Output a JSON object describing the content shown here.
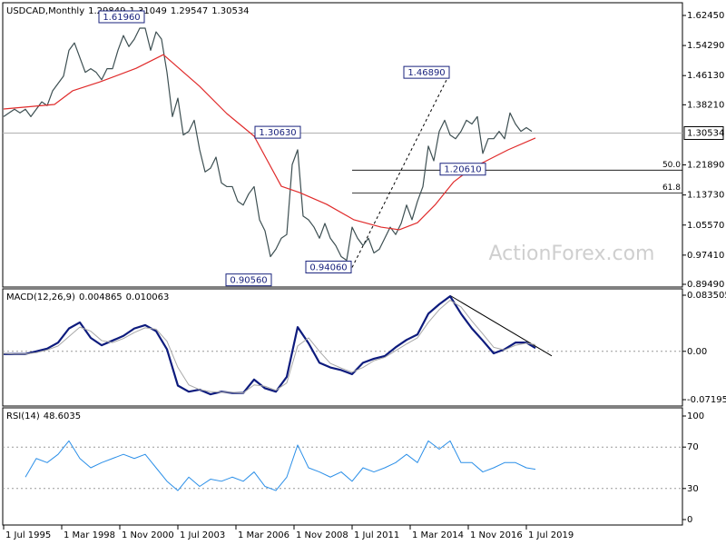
{
  "chart_data": [
    {
      "type": "line",
      "title": "USDCAD,Monthly",
      "readings": [
        1.29849,
        1.31049,
        1.29547,
        1.30534
      ],
      "last_price_line": true,
      "watermark": "ActionForex.com",
      "ylim": [
        0.8949,
        1.6245
      ],
      "yticks": [
        {
          "value": 1.6245,
          "label": "1.62450"
        },
        {
          "value": 1.5429,
          "label": "1.54290"
        },
        {
          "value": 1.4613,
          "label": "1.46130"
        },
        {
          "value": 1.3821,
          "label": "1.38210"
        },
        {
          "value": 1.2189,
          "label": "1.21890"
        },
        {
          "value": 1.1373,
          "label": "1.13730"
        },
        {
          "value": 1.0557,
          "label": "1.05570"
        },
        {
          "value": 0.9741,
          "label": "0.97410"
        },
        {
          "value": 0.8949,
          "label": "0.89490"
        }
      ],
      "series": [
        {
          "color": "#3d4f52",
          "x": [
            "1995-07",
            "1995-10",
            "1996-01",
            "1996-04",
            "1996-07",
            "1996-10",
            "1997-01",
            "1997-04",
            "1997-07",
            "1997-10",
            "1998-01",
            "1998-04",
            "1998-07",
            "1998-10",
            "1999-01",
            "1999-04",
            "1999-07",
            "1999-10",
            "2000-01",
            "2000-04",
            "2000-07",
            "2000-10",
            "2001-01",
            "2001-04",
            "2001-07",
            "2001-10",
            "2002-01",
            "2002-04",
            "2002-07",
            "2002-10",
            "2003-01",
            "2003-04",
            "2003-07",
            "2003-10",
            "2004-01",
            "2004-04",
            "2004-07",
            "2004-10",
            "2005-01",
            "2005-04",
            "2005-07",
            "2005-10",
            "2006-01",
            "2006-04",
            "2006-07",
            "2006-10",
            "2007-01",
            "2007-04",
            "2007-07",
            "2007-10",
            "2008-01",
            "2008-04",
            "2008-07",
            "2008-10",
            "2009-01",
            "2009-04",
            "2009-07",
            "2009-10",
            "2010-01",
            "2010-04",
            "2010-07",
            "2010-10",
            "2011-01",
            "2011-04",
            "2011-07",
            "2011-10",
            "2012-01",
            "2012-04",
            "2012-07",
            "2012-10",
            "2013-01",
            "2013-04",
            "2013-07",
            "2013-10",
            "2014-01",
            "2014-04",
            "2014-07",
            "2014-10",
            "2015-01",
            "2015-04",
            "2015-07",
            "2015-10",
            "2016-01",
            "2016-04",
            "2016-07",
            "2016-10",
            "2017-01",
            "2017-04",
            "2017-07",
            "2017-10",
            "2018-01",
            "2018-04",
            "2018-07",
            "2018-10",
            "2019-01",
            "2019-04",
            "2019-07",
            "2019-10"
          ],
          "values": [
            1.35,
            1.36,
            1.37,
            1.36,
            1.37,
            1.35,
            1.37,
            1.39,
            1.38,
            1.42,
            1.44,
            1.46,
            1.53,
            1.55,
            1.51,
            1.47,
            1.48,
            1.47,
            1.45,
            1.48,
            1.48,
            1.53,
            1.57,
            1.54,
            1.56,
            1.59,
            1.59,
            1.53,
            1.58,
            1.56,
            1.47,
            1.35,
            1.4,
            1.3,
            1.31,
            1.34,
            1.26,
            1.2,
            1.21,
            1.24,
            1.17,
            1.16,
            1.16,
            1.12,
            1.11,
            1.14,
            1.16,
            1.07,
            1.04,
            0.97,
            0.99,
            1.02,
            1.03,
            1.22,
            1.26,
            1.08,
            1.07,
            1.05,
            1.02,
            1.06,
            1.02,
            1.0,
            0.97,
            0.96,
            1.05,
            1.02,
            1.0,
            1.02,
            0.98,
            0.99,
            1.02,
            1.05,
            1.03,
            1.06,
            1.11,
            1.07,
            1.12,
            1.16,
            1.27,
            1.23,
            1.31,
            1.34,
            1.3,
            1.29,
            1.31,
            1.34,
            1.33,
            1.35,
            1.25,
            1.29,
            1.29,
            1.31,
            1.29,
            1.36,
            1.33,
            1.31,
            1.32,
            1.31
          ]
        },
        {
          "color": "#e02b2b",
          "x": [
            "1995-07",
            "1997-11",
            "1998-09",
            "1999-12",
            "2001-08",
            "2002-11",
            "2004-07",
            "2005-10",
            "2007-01",
            "2008-04",
            "2009-02",
            "2010-05",
            "2011-08",
            "2012-11",
            "2013-09",
            "2014-07",
            "2015-05",
            "2016-03",
            "2017-01",
            "2017-11",
            "2018-09",
            "2019-12"
          ],
          "values": [
            1.3706,
            1.383,
            1.42,
            1.444,
            1.481,
            1.518,
            1.432,
            1.358,
            1.297,
            1.161,
            1.144,
            1.112,
            1.07,
            1.05,
            1.043,
            1.062,
            1.112,
            1.173,
            1.21,
            1.235,
            1.26,
            1.292
          ]
        }
      ],
      "annotations": [
        {
          "x": "2002-01",
          "value": 1.6196,
          "label": "1.61960"
        },
        {
          "x": "2009-03",
          "value": 1.3063,
          "label": "1.30630"
        },
        {
          "x": "2016-01",
          "value": 1.4689,
          "label": "1.46890"
        },
        {
          "x": "2017-09",
          "value": 1.2061,
          "label": "1.20610"
        },
        {
          "x": "2007-11",
          "value": 0.9056,
          "label": "0.90560"
        },
        {
          "x": "2011-07",
          "value": 0.9406,
          "label": "0.94060"
        }
      ],
      "trendlines": [
        {
          "x": [
            "2011-07",
            "2016-01"
          ],
          "values": [
            0.9406,
            1.4689
          ]
        }
      ],
      "fib": [
        {
          "x": "2011-07",
          "value": 1.20475,
          "label": "50.0"
        },
        {
          "x": "2011-07",
          "value": 1.1424,
          "label": "61.8"
        }
      ]
    },
    {
      "type": "line",
      "title": "MACD(12,26,9)",
      "readings": [
        0.004865,
        0.010063
      ],
      "ylim": [
        -0.07195,
        0.083505
      ],
      "yticks": [
        0.083505,
        {
          "value": 0,
          "label": "0.00"
        },
        -0.07195
      ],
      "levels": [
        0
      ],
      "series": [
        {
          "color": "#0d1b7d",
          "x": [
            "1995-07",
            "1996-01",
            "1996-07",
            "1997-01",
            "1997-07",
            "1998-01",
            "1998-07",
            "1999-01",
            "1999-07",
            "2000-01",
            "2000-07",
            "2001-01",
            "2001-07",
            "2002-01",
            "2002-07",
            "2003-01",
            "2003-07",
            "2004-01",
            "2004-07",
            "2005-01",
            "2005-07",
            "2006-01",
            "2006-07",
            "2007-01",
            "2007-07",
            "2008-01",
            "2008-07",
            "2009-01",
            "2009-07",
            "2010-01",
            "2010-07",
            "2011-01",
            "2011-07",
            "2012-01",
            "2012-07",
            "2013-01",
            "2013-07",
            "2014-01",
            "2014-07",
            "2015-01",
            "2015-07",
            "2016-01",
            "2016-07",
            "2017-01",
            "2017-07",
            "2018-01",
            "2018-07",
            "2019-01",
            "2019-07",
            "2019-12"
          ],
          "values": [
            -0.004,
            -0.004,
            -0.004,
            0,
            0.004,
            0.013,
            0.034,
            0.043,
            0.02,
            0.009,
            0.016,
            0.023,
            0.034,
            0.039,
            0.03,
            0.003,
            -0.051,
            -0.06,
            -0.057,
            -0.064,
            -0.06,
            -0.062,
            -0.062,
            -0.042,
            -0.055,
            -0.06,
            -0.038,
            0.036,
            0.012,
            -0.017,
            -0.024,
            -0.028,
            -0.034,
            -0.017,
            -0.011,
            -0.007,
            0.006,
            0.017,
            0.025,
            0.056,
            0.07,
            0.082,
            0.056,
            0.034,
            0.016,
            -0.003,
            0.003,
            0.013,
            0.013,
            0.004865
          ]
        },
        {
          "color": "#a8a8a8",
          "x": [
            "1995-07",
            "1996-01",
            "1996-07",
            "1997-01",
            "1997-07",
            "1998-01",
            "1998-07",
            "1999-01",
            "1999-07",
            "2000-01",
            "2000-07",
            "2001-01",
            "2001-07",
            "2002-01",
            "2002-07",
            "2003-01",
            "2003-07",
            "2004-01",
            "2004-07",
            "2005-01",
            "2005-07",
            "2006-01",
            "2006-07",
            "2007-01",
            "2007-07",
            "2008-01",
            "2008-07",
            "2009-01",
            "2009-07",
            "2010-01",
            "2010-07",
            "2011-01",
            "2011-07",
            "2012-01",
            "2012-07",
            "2013-01",
            "2013-07",
            "2014-01",
            "2014-07",
            "2015-01",
            "2015-07",
            "2016-01",
            "2016-07",
            "2017-01",
            "2017-07",
            "2018-01",
            "2018-07",
            "2019-01",
            "2019-07",
            "2019-12"
          ],
          "values": [
            -0.003,
            -0.004,
            -0.004,
            -0.002,
            0.002,
            0.008,
            0.022,
            0.036,
            0.03,
            0.016,
            0.013,
            0.019,
            0.028,
            0.035,
            0.033,
            0.015,
            -0.024,
            -0.05,
            -0.057,
            -0.06,
            -0.061,
            -0.061,
            -0.062,
            -0.05,
            -0.052,
            -0.058,
            -0.047,
            0.008,
            0.02,
            0,
            -0.018,
            -0.025,
            -0.031,
            -0.024,
            -0.014,
            -0.009,
            0.001,
            0.011,
            0.02,
            0.043,
            0.062,
            0.076,
            0.066,
            0.045,
            0.026,
            0.006,
            0.002,
            0.009,
            0.012,
            0.010063
          ]
        }
      ],
      "trendlines": [
        {
          "x": [
            "2016-01",
            "2020-09"
          ],
          "values": [
            0.083,
            -0.0068
          ]
        }
      ]
    },
    {
      "type": "line",
      "title": "RSI(14)",
      "readings": [
        48.6035
      ],
      "ylim": [
        0,
        100
      ],
      "yticks": [
        100,
        70,
        30,
        0
      ],
      "levels": [
        70,
        30
      ],
      "series": [
        {
          "color": "#2b8fe8",
          "x": [
            "1996-07",
            "1997-01",
            "1997-07",
            "1998-01",
            "1998-07",
            "1999-01",
            "1999-07",
            "2000-01",
            "2000-07",
            "2001-01",
            "2001-07",
            "2002-01",
            "2002-07",
            "2003-01",
            "2003-07",
            "2004-01",
            "2004-07",
            "2005-01",
            "2005-07",
            "2006-01",
            "2006-07",
            "2007-01",
            "2007-07",
            "2008-01",
            "2008-07",
            "2009-01",
            "2009-07",
            "2010-01",
            "2010-07",
            "2011-01",
            "2011-07",
            "2012-01",
            "2012-07",
            "2013-01",
            "2013-07",
            "2014-01",
            "2014-07",
            "2015-01",
            "2015-07",
            "2016-01",
            "2016-07",
            "2017-01",
            "2017-07",
            "2018-01",
            "2018-07",
            "2019-01",
            "2019-07",
            "2019-12"
          ],
          "values": [
            41,
            59,
            55,
            63,
            76,
            59,
            50,
            55,
            59,
            63,
            59,
            63,
            50,
            37,
            28,
            41,
            32,
            39,
            37,
            41,
            37,
            46,
            32,
            28,
            41,
            72,
            50,
            46,
            41,
            46,
            37,
            50,
            46,
            50,
            55,
            63,
            55,
            76,
            68,
            76,
            55,
            55,
            46,
            50,
            55,
            55,
            50,
            48.6035
          ]
        }
      ],
      "xticks": [
        {
          "value": "1995-07",
          "label": "1 Jul 1995"
        },
        {
          "value": "1998-03",
          "label": "1 Mar 1998"
        },
        {
          "value": "2000-11",
          "label": "1 Nov 2000"
        },
        {
          "value": "2003-07",
          "label": "1 Jul 2003"
        },
        {
          "value": "2006-03",
          "label": "1 Mar 2006"
        },
        {
          "value": "2008-11",
          "label": "1 Nov 2008"
        },
        {
          "value": "2011-07",
          "label": "1 Jul 2011"
        },
        {
          "value": "2014-03",
          "label": "1 Mar 2014"
        },
        {
          "value": "2016-11",
          "label": "1 Nov 2016"
        },
        {
          "value": "2019-07",
          "label": "1 Jul 2019"
        }
      ]
    }
  ]
}
